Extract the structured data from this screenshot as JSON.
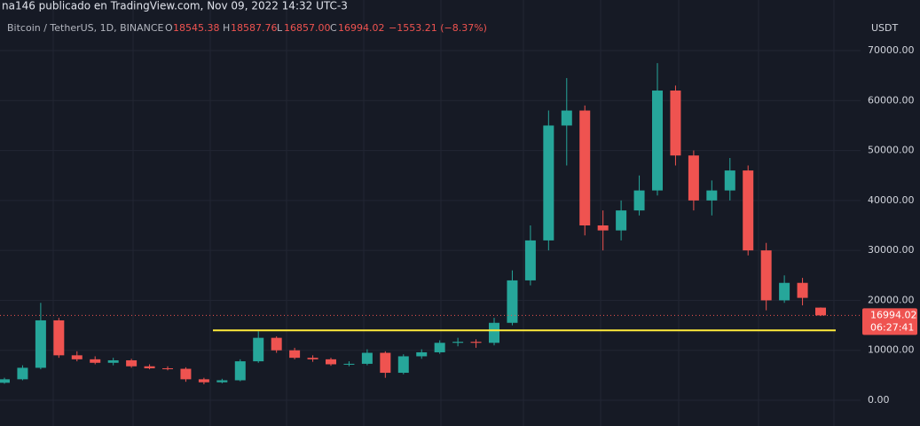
{
  "header": "na146 publicado en TradingView.com, Nov 09, 2022 14:32 UTC-3",
  "chart_data": {
    "type": "candlestick",
    "legend": {
      "symbol": "Bitcoin / TetherUS, 1D, BINANCE",
      "open_label": "O",
      "open": "18545.38",
      "high_label": "H",
      "high": "18587.76",
      "low_label": "L",
      "low": "16857.00",
      "close_label": "C",
      "close": "16994.02",
      "change": "−1553.21 (−8.37%)"
    },
    "y_unit": "USDT",
    "up_color": "#26a69a",
    "down_color": "#ef5350",
    "open": [
      3500,
      4200,
      6500,
      16000,
      9000,
      8200,
      7500,
      8000,
      6800,
      6400,
      6300,
      4200,
      3600,
      4000,
      7800,
      12500,
      10000,
      8500,
      8200,
      7200,
      7300,
      9500,
      5500,
      8800,
      9600,
      11500,
      11700,
      11500,
      15500,
      24000,
      32000,
      55000,
      58000,
      35000,
      34000,
      38000,
      42000,
      62000,
      49000,
      40000,
      42000,
      46000,
      30000,
      20000,
      23500,
      18545.38
    ],
    "high": [
      4500,
      7000,
      19500,
      16500,
      9800,
      8800,
      8500,
      8300,
      7200,
      6800,
      6600,
      4500,
      4300,
      8200,
      13800,
      12800,
      10500,
      9000,
      8500,
      7800,
      10200,
      9800,
      9200,
      10200,
      12000,
      12500,
      12200,
      16500,
      26000,
      35000,
      58000,
      64500,
      59000,
      38000,
      40000,
      45000,
      67500,
      63000,
      50000,
      44000,
      48500,
      47000,
      31500,
      25000,
      24500,
      18587.76
    ],
    "low": [
      3300,
      4000,
      6200,
      8500,
      7800,
      7200,
      7000,
      6500,
      6200,
      6000,
      3700,
      3200,
      3400,
      3800,
      7500,
      9500,
      8200,
      7700,
      6900,
      6800,
      7000,
      4500,
      5200,
      8300,
      9300,
      10800,
      10500,
      11000,
      15000,
      23000,
      30000,
      47000,
      33000,
      30000,
      32000,
      37000,
      41000,
      47000,
      38000,
      37000,
      40000,
      29000,
      18000,
      19500,
      19000,
      16857
    ],
    "close": [
      4200,
      6500,
      16000,
      9000,
      8200,
      7500,
      8000,
      6800,
      6400,
      6300,
      4200,
      3600,
      4000,
      7800,
      12500,
      10000,
      8500,
      8200,
      7200,
      7300,
      9500,
      5500,
      8800,
      9600,
      11500,
      11700,
      11500,
      15500,
      24000,
      32000,
      55000,
      58000,
      35000,
      34000,
      38000,
      42000,
      62000,
      49000,
      40000,
      42000,
      46000,
      30000,
      20000,
      23500,
      20500,
      16994.02
    ],
    "ylim": [
      -3000,
      72000
    ],
    "yticks": [
      {
        "value": 0,
        "label": "0.00"
      },
      {
        "value": 10000,
        "label": "10000.00"
      },
      {
        "value": 20000,
        "label": "20000.00"
      },
      {
        "value": 30000,
        "label": "30000.00"
      },
      {
        "value": 40000,
        "label": "40000.00"
      },
      {
        "value": 50000,
        "label": "50000.00"
      },
      {
        "value": 60000,
        "label": "60000.00"
      },
      {
        "value": 70000,
        "label": "70000.00"
      }
    ],
    "grid": true,
    "hline": {
      "value": 14000,
      "color": "#ffeb3b"
    },
    "last_price": {
      "value": 16994.02,
      "countdown": "06:27:41",
      "color": "#ef5350"
    }
  }
}
